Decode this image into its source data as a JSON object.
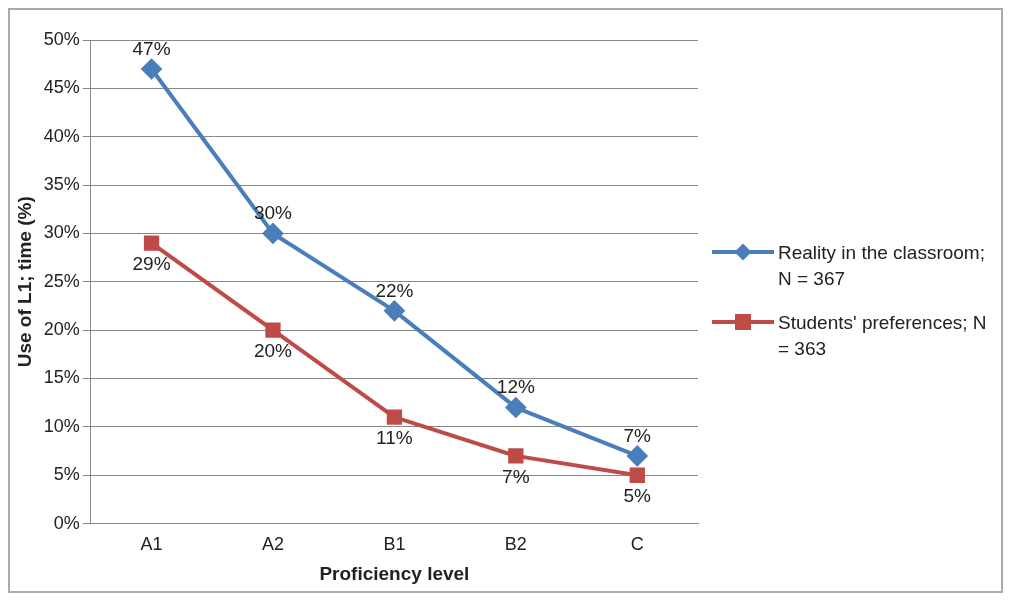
{
  "chart_data": {
    "type": "line",
    "xlabel": "Proficiency level",
    "ylabel": "Use of L1; time (%)",
    "categories": [
      "A1",
      "A2",
      "B1",
      "B2",
      "C"
    ],
    "series": [
      {
        "name": "Reality in the classroom; N = 367",
        "color": "#4a7ebb",
        "marker": "diamond",
        "values": [
          47,
          30,
          22,
          12,
          7
        ],
        "value_labels": [
          "47%",
          "30%",
          "22%",
          "12%",
          "7%"
        ]
      },
      {
        "name": "Students' preferences; N = 363",
        "color": "#be4b48",
        "marker": "square",
        "values": [
          29,
          20,
          11,
          7,
          5
        ],
        "value_labels": [
          "29%",
          "20%",
          "11%",
          "7%",
          "5%"
        ]
      }
    ],
    "ylim": [
      0,
      50
    ],
    "yticks": [
      {
        "value": 0,
        "label": "0%"
      },
      {
        "value": 5,
        "label": "5%"
      },
      {
        "value": 10,
        "label": "10%"
      },
      {
        "value": 15,
        "label": "15%"
      },
      {
        "value": 20,
        "label": "20%"
      },
      {
        "value": 25,
        "label": "25%"
      },
      {
        "value": 30,
        "label": "30%"
      },
      {
        "value": 35,
        "label": "35%"
      },
      {
        "value": 40,
        "label": "40%"
      },
      {
        "value": 45,
        "label": "45%"
      },
      {
        "value": 50,
        "label": "50%"
      }
    ],
    "grid": "y",
    "legend": "right"
  }
}
